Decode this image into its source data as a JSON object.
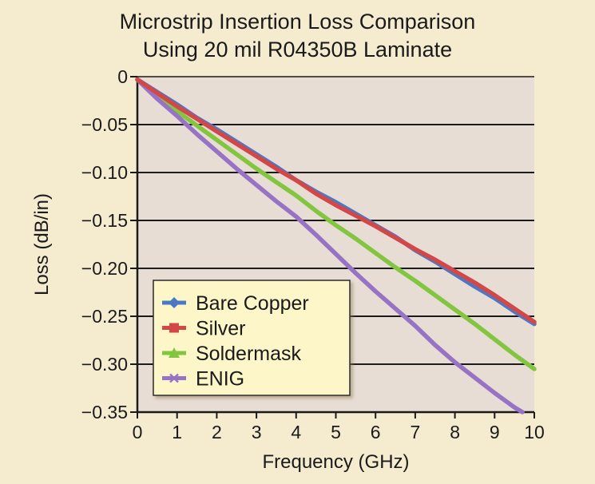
{
  "chart_data": {
    "type": "line",
    "title": "Microstrip Insertion Loss Comparison",
    "subtitle": "Using 20 mil R04350B Laminate",
    "xlabel": "Frequency (GHz)",
    "ylabel": "Loss (dB/in)",
    "xlim": [
      0,
      10
    ],
    "ylim": [
      -0.35,
      0
    ],
    "xticks": [
      0,
      1,
      2,
      3,
      4,
      5,
      6,
      7,
      8,
      9,
      10
    ],
    "xtick_labels": [
      "0",
      "1",
      "2",
      "3",
      "4",
      "5",
      "6",
      "7",
      "8",
      "9",
      "10"
    ],
    "yticks": [
      0,
      -0.05,
      -0.1,
      -0.15,
      -0.2,
      -0.25,
      -0.3,
      -0.35
    ],
    "ytick_labels": [
      "0",
      "−0.05",
      "−0.10",
      "−0.15",
      "−0.20",
      "−0.25",
      "−0.30",
      "−0.35"
    ],
    "grid": "horizontal",
    "legend_position": "bottom-left",
    "series": [
      {
        "name": "Bare Copper",
        "color": "#4a78c4",
        "marker": "diamond",
        "x": [
          0,
          0.5,
          1,
          1.5,
          2,
          2.5,
          3,
          3.5,
          4,
          4.5,
          5,
          5.5,
          6,
          6.5,
          7,
          7.5,
          8,
          8.5,
          9,
          9.5,
          10
        ],
        "y": [
          -0.003,
          -0.016,
          -0.029,
          -0.043,
          -0.055,
          -0.068,
          -0.081,
          -0.094,
          -0.108,
          -0.12,
          -0.131,
          -0.143,
          -0.155,
          -0.167,
          -0.181,
          -0.193,
          -0.206,
          -0.219,
          -0.231,
          -0.245,
          -0.258
        ]
      },
      {
        "name": "Silver",
        "color": "#d24848",
        "marker": "square",
        "x": [
          0,
          0.5,
          1,
          1.5,
          2,
          2.5,
          3,
          3.5,
          4,
          4.5,
          5,
          5.5,
          6,
          6.5,
          7,
          7.5,
          8,
          8.5,
          9,
          9.5,
          10
        ],
        "y": [
          -0.003,
          -0.017,
          -0.031,
          -0.044,
          -0.057,
          -0.07,
          -0.083,
          -0.096,
          -0.108,
          -0.122,
          -0.134,
          -0.145,
          -0.156,
          -0.168,
          -0.18,
          -0.191,
          -0.203,
          -0.215,
          -0.228,
          -0.242,
          -0.256
        ]
      },
      {
        "name": "Soldermask",
        "color": "#82c63f",
        "marker": "triangle",
        "x": [
          0,
          0.5,
          1,
          1.5,
          2,
          2.5,
          3,
          3.5,
          4,
          4.5,
          5,
          5.5,
          6,
          6.5,
          7,
          7.5,
          8,
          8.5,
          9,
          9.5,
          10
        ],
        "y": [
          -0.003,
          -0.02,
          -0.036,
          -0.051,
          -0.066,
          -0.081,
          -0.096,
          -0.11,
          -0.124,
          -0.14,
          -0.155,
          -0.169,
          -0.184,
          -0.199,
          -0.213,
          -0.228,
          -0.243,
          -0.258,
          -0.274,
          -0.29,
          -0.305
        ]
      },
      {
        "name": "ENIG",
        "color": "#9673c5",
        "marker": "x",
        "x": [
          0,
          0.5,
          1,
          1.5,
          2,
          2.5,
          3,
          3.5,
          4,
          4.5,
          5,
          5.5,
          6,
          6.5,
          7,
          7.5,
          8,
          8.5,
          9,
          9.5,
          9.7
        ],
        "y": [
          -0.003,
          -0.023,
          -0.041,
          -0.06,
          -0.078,
          -0.096,
          -0.113,
          -0.13,
          -0.146,
          -0.165,
          -0.185,
          -0.205,
          -0.224,
          -0.242,
          -0.26,
          -0.28,
          -0.298,
          -0.314,
          -0.33,
          -0.345,
          -0.35
        ]
      }
    ]
  }
}
